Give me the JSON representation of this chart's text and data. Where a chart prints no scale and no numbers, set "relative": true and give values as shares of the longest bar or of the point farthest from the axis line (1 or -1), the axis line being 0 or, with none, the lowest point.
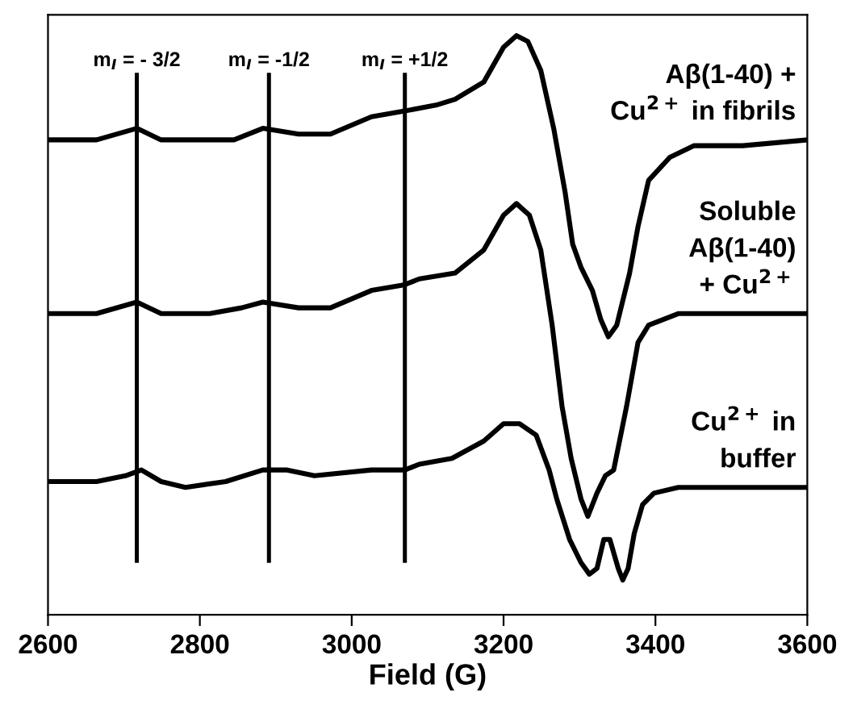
{
  "chart_data": {
    "type": "line",
    "relative": true,
    "xlabel": "Field (G)",
    "xlim": [
      2600,
      3600
    ],
    "xticks": [
      2600,
      2800,
      3000,
      3200,
      3400,
      3600
    ],
    "series": [
      {
        "name": "Aβ(1-40) +\nCu$^{2+}$ in fibrils",
        "color": "#000000",
        "x": [
          2600,
          2664,
          2717,
          2749,
          2813,
          2845,
          2883,
          2930,
          2972,
          3026,
          3070,
          3111,
          3136,
          3174,
          3200,
          3217,
          3232,
          3249,
          3266,
          3281,
          3291,
          3302,
          3317,
          3328,
          3338,
          3349,
          3366,
          3377,
          3391,
          3419,
          3451,
          3515,
          3600
        ],
        "values": [
          0.82,
          0.82,
          0.84,
          0.82,
          0.82,
          0.82,
          0.84,
          0.83,
          0.83,
          0.86,
          0.87,
          0.88,
          0.89,
          0.92,
          0.98,
          1.0,
          0.99,
          0.94,
          0.84,
          0.73,
          0.64,
          0.6,
          0.56,
          0.51,
          0.48,
          0.5,
          0.59,
          0.67,
          0.75,
          0.79,
          0.81,
          0.81,
          0.82
        ]
      },
      {
        "name": "Soluble\nAβ(1-40)\n+ Cu$^{2+}$",
        "color": "#000000",
        "x": [
          2600,
          2664,
          2717,
          2749,
          2813,
          2855,
          2883,
          2930,
          2972,
          3026,
          3070,
          3089,
          3136,
          3174,
          3200,
          3217,
          3234,
          3249,
          3264,
          3277,
          3289,
          3302,
          3311,
          3323,
          3334,
          3345,
          3362,
          3377,
          3391,
          3430,
          3515,
          3600
        ],
        "values": [
          0.52,
          0.52,
          0.54,
          0.52,
          0.52,
          0.53,
          0.54,
          0.53,
          0.53,
          0.56,
          0.57,
          0.58,
          0.59,
          0.63,
          0.69,
          0.71,
          0.69,
          0.63,
          0.5,
          0.36,
          0.27,
          0.2,
          0.17,
          0.21,
          0.24,
          0.25,
          0.36,
          0.47,
          0.5,
          0.52,
          0.52,
          0.52
        ]
      },
      {
        "name": "Cu$^{2+}$ in\nbuffer",
        "color": "#000000",
        "x": [
          2600,
          2664,
          2702,
          2723,
          2749,
          2781,
          2834,
          2883,
          2915,
          2951,
          3026,
          3070,
          3089,
          3132,
          3174,
          3200,
          3221,
          3243,
          3260,
          3270,
          3287,
          3302,
          3313,
          3323,
          3332,
          3340,
          3351,
          3357,
          3364,
          3372,
          3383,
          3398,
          3430,
          3515,
          3600
        ],
        "values": [
          0.23,
          0.23,
          0.24,
          0.25,
          0.23,
          0.22,
          0.23,
          0.25,
          0.25,
          0.24,
          0.25,
          0.25,
          0.26,
          0.27,
          0.3,
          0.33,
          0.33,
          0.31,
          0.25,
          0.2,
          0.13,
          0.09,
          0.07,
          0.08,
          0.13,
          0.13,
          0.08,
          0.06,
          0.08,
          0.14,
          0.19,
          0.21,
          0.22,
          0.22,
          0.22
        ]
      }
    ],
    "ref_lines": [
      {
        "axis": "x",
        "value": 2717,
        "color": "#000000"
      },
      {
        "axis": "x",
        "value": 2891,
        "color": "#000000"
      },
      {
        "axis": "x",
        "value": 3070,
        "color": "#000000"
      }
    ],
    "annotations": [
      {
        "text": "m$_{I}$ = - 3/2",
        "x": 2717,
        "y": 0.94
      },
      {
        "text": "m$_{I}$ = -1/2",
        "x": 2891,
        "y": 0.94
      },
      {
        "text": "m$_{I}$ = +1/2",
        "x": 3070,
        "y": 0.94
      }
    ],
    "marker": "none",
    "line_style": "solid",
    "grid": false,
    "legend": false
  }
}
